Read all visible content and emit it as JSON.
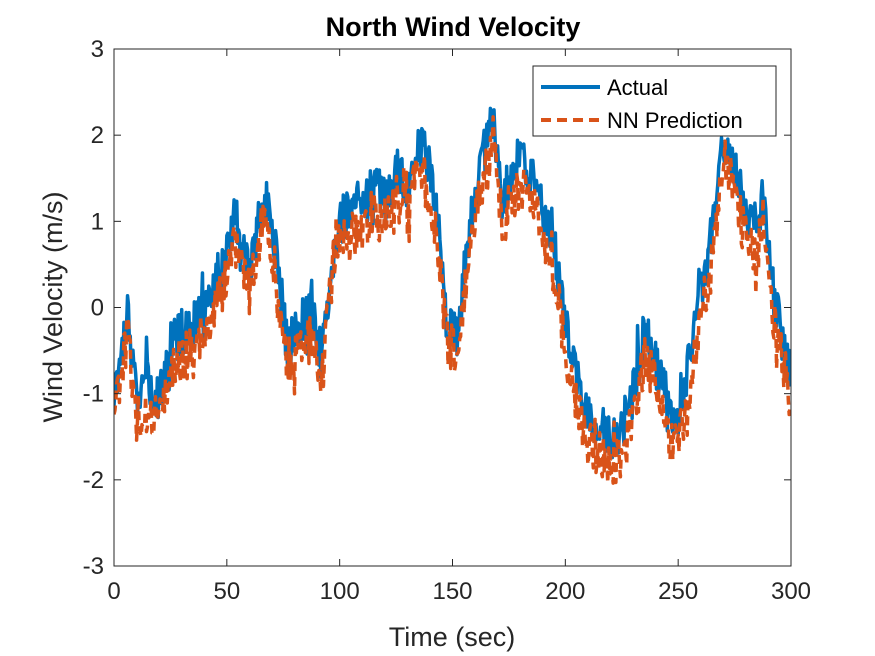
{
  "chart_data": {
    "type": "line",
    "title": "North Wind Velocity",
    "xlabel": "Time (sec)",
    "ylabel": "Wind Velocity (m/s)",
    "xlim": [
      0,
      300
    ],
    "ylim": [
      -3,
      3
    ],
    "xticks": [
      0,
      50,
      100,
      150,
      200,
      250,
      300
    ],
    "yticks": [
      -3,
      -2,
      -1,
      0,
      1,
      2,
      3
    ],
    "xtick_labels": [
      "0",
      "50",
      "100",
      "150",
      "200",
      "250",
      "300"
    ],
    "ytick_labels": [
      "-3",
      "-2",
      "-1",
      "0",
      "1",
      "2",
      "3"
    ],
    "grid": false,
    "legend_position": "top-right",
    "x": [
      0,
      3,
      6,
      10,
      15,
      20,
      25,
      30,
      35,
      40,
      45,
      50,
      53,
      56,
      60,
      65,
      68,
      72,
      77,
      82,
      87,
      92,
      97,
      100,
      105,
      110,
      115,
      120,
      125,
      130,
      135,
      140,
      145,
      148,
      152,
      157,
      162,
      166,
      168,
      172,
      176,
      180,
      185,
      190,
      195,
      200,
      205,
      210,
      215,
      220,
      225,
      230,
      235,
      240,
      245,
      250,
      255,
      260,
      265,
      270,
      275,
      280,
      285,
      288,
      292,
      296,
      300
    ],
    "series": [
      {
        "name": "Actual",
        "color": "#0072BD",
        "style": "solid",
        "values": [
          -1.0,
          -0.6,
          0.0,
          -1.0,
          -0.8,
          -1.1,
          -0.4,
          -0.3,
          -0.2,
          -0.1,
          0.3,
          0.6,
          1.0,
          0.7,
          0.4,
          1.1,
          1.2,
          0.6,
          -0.5,
          -0.2,
          0.0,
          -0.6,
          0.7,
          1.0,
          1.1,
          1.2,
          1.4,
          1.3,
          1.6,
          1.4,
          1.9,
          1.7,
          0.6,
          -0.3,
          -0.3,
          0.8,
          1.6,
          2.0,
          2.3,
          1.2,
          1.6,
          1.7,
          1.5,
          1.2,
          0.7,
          -0.2,
          -0.8,
          -1.3,
          -1.4,
          -1.5,
          -1.4,
          -1.0,
          -0.3,
          -0.6,
          -1.2,
          -1.3,
          -0.6,
          0.2,
          0.8,
          2.0,
          1.6,
          1.1,
          0.9,
          1.4,
          0.2,
          -0.3,
          -0.8
        ]
      },
      {
        "name": "NN Prediction",
        "color": "#D95319",
        "style": "dashed",
        "values": [
          -1.1,
          -0.8,
          -0.3,
          -1.3,
          -1.2,
          -1.3,
          -0.7,
          -0.6,
          -0.5,
          -0.4,
          0.1,
          0.3,
          0.8,
          0.5,
          0.2,
          0.9,
          1.0,
          0.3,
          -0.7,
          -0.5,
          -0.3,
          -0.9,
          0.5,
          0.8,
          0.9,
          0.9,
          1.1,
          1.0,
          1.3,
          1.1,
          1.6,
          1.4,
          0.3,
          -0.5,
          -0.6,
          0.5,
          1.3,
          1.6,
          2.0,
          0.9,
          1.3,
          1.4,
          1.2,
          0.9,
          0.4,
          -0.5,
          -1.1,
          -1.6,
          -1.7,
          -1.8,
          -1.8,
          -1.3,
          -0.6,
          -0.9,
          -1.5,
          -1.6,
          -0.9,
          -0.1,
          0.5,
          1.8,
          1.3,
          0.8,
          0.6,
          1.1,
          -0.1,
          -0.6,
          -1.1
        ]
      }
    ]
  }
}
